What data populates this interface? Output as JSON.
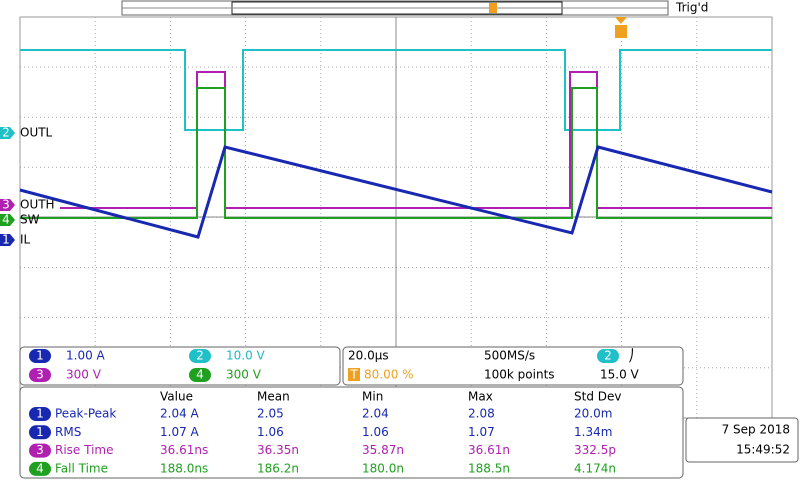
{
  "header": {
    "status": "Trig'd"
  },
  "traces": [
    {
      "number": "2",
      "label": "OUTL"
    },
    {
      "number": "3",
      "label": "OUTH"
    },
    {
      "number": "4",
      "label": "SW"
    },
    {
      "number": "1",
      "label": "IL"
    }
  ],
  "channels": [
    {
      "number": "1",
      "scale": "1.00 A"
    },
    {
      "number": "2",
      "scale": "10.0 V"
    },
    {
      "number": "3",
      "scale": "300 V"
    },
    {
      "number": "4",
      "scale": "300 V"
    }
  ],
  "acquisition": {
    "timebase": "20.0µs",
    "sample_rate": "500MS/s",
    "trigger_position_badge": "T",
    "trigger_position": "80.00 %",
    "record_length": "100k points",
    "trigger_channel": "2",
    "trigger_slope": "⎠",
    "trigger_level": "15.0 V"
  },
  "measurements": {
    "columns": [
      "Value",
      "Mean",
      "Min",
      "Max",
      "Std Dev"
    ],
    "rows": [
      {
        "channel": "1",
        "name": "Peak-Peak",
        "cells": [
          "2.04 A",
          "2.05",
          "2.04",
          "2.08",
          "20.0m"
        ]
      },
      {
        "channel": "1",
        "name": "RMS",
        "cells": [
          "1.07 A",
          "1.06",
          "1.06",
          "1.07",
          "1.34m"
        ]
      },
      {
        "channel": "3",
        "name": "Rise Time",
        "cells": [
          "36.61ns",
          "36.35n",
          "35.87n",
          "36.61n",
          "332.5p"
        ]
      },
      {
        "channel": "4",
        "name": "Fall Time",
        "cells": [
          "188.0ns",
          "186.2n",
          "180.0n",
          "188.5n",
          "4.174n"
        ]
      }
    ]
  },
  "timestamp": {
    "date": "7 Sep 2018",
    "time": "15:49:52"
  }
}
